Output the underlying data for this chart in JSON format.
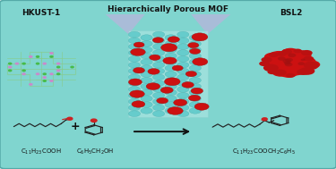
{
  "bg_color": "#80d5cf",
  "title_hkust": "HKUST-1",
  "title_mof": "Hierarchically Porous MOF",
  "title_bsl2": "BSL2",
  "formula_left1": "C$_{11}$H$_{23}$COOH",
  "formula_left2": "C$_6$H$_5$CH$_2$OH",
  "formula_right": "C$_{11}$H$_{23}$COOCH$_2$C$_6$H$_5$",
  "fig_width": 3.75,
  "fig_height": 1.89,
  "dpi": 100,
  "title_fontsize": 6.5,
  "formula_fontsize": 5.0,
  "hkust_green": "#44bb44",
  "hkust_purple": "#cc88cc",
  "hkust_line": "#88cc88",
  "mof_bead": "#66cccc",
  "mof_bead_edge": "#44aaaa",
  "enzyme_red": "#cc1111",
  "enzyme_dark": "#991111",
  "beam_color": "#c0b0dd",
  "arrow_color": "#222222",
  "text_color": "#111111"
}
